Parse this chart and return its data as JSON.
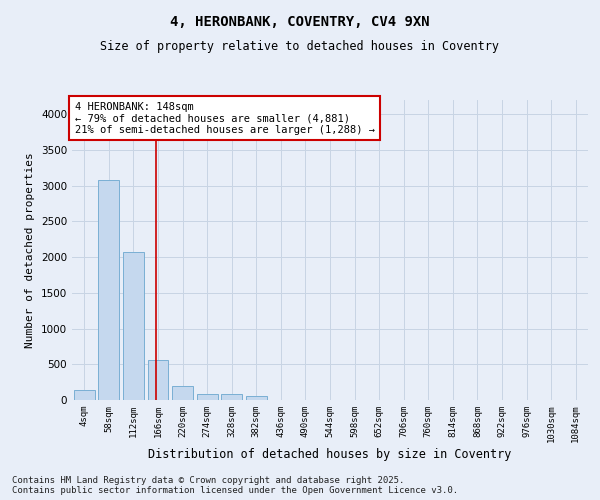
{
  "title1": "4, HERONBANK, COVENTRY, CV4 9XN",
  "title2": "Size of property relative to detached houses in Coventry",
  "xlabel": "Distribution of detached houses by size in Coventry",
  "ylabel": "Number of detached properties",
  "bin_labels": [
    "4sqm",
    "58sqm",
    "112sqm",
    "166sqm",
    "220sqm",
    "274sqm",
    "328sqm",
    "382sqm",
    "436sqm",
    "490sqm",
    "544sqm",
    "598sqm",
    "652sqm",
    "706sqm",
    "760sqm",
    "814sqm",
    "868sqm",
    "922sqm",
    "976sqm",
    "1030sqm",
    "1084sqm"
  ],
  "bar_values": [
    145,
    3075,
    2075,
    565,
    200,
    80,
    80,
    50,
    0,
    0,
    0,
    0,
    0,
    0,
    0,
    0,
    0,
    0,
    0,
    0,
    0
  ],
  "bar_color": "#c5d8ee",
  "bar_edge_color": "#7aafd4",
  "grid_color": "#c8d4e4",
  "annotation_text": "4 HERONBANK: 148sqm\n← 79% of detached houses are smaller (4,881)\n21% of semi-detached houses are larger (1,288) →",
  "annotation_box_color": "#ffffff",
  "annotation_box_edge": "#cc0000",
  "vline_color": "#cc0000",
  "vline_x": 2.9,
  "ylim": [
    0,
    4200
  ],
  "yticks": [
    0,
    500,
    1000,
    1500,
    2000,
    2500,
    3000,
    3500,
    4000
  ],
  "footer": "Contains HM Land Registry data © Crown copyright and database right 2025.\nContains public sector information licensed under the Open Government Licence v3.0.",
  "bg_color": "#e8eef8"
}
